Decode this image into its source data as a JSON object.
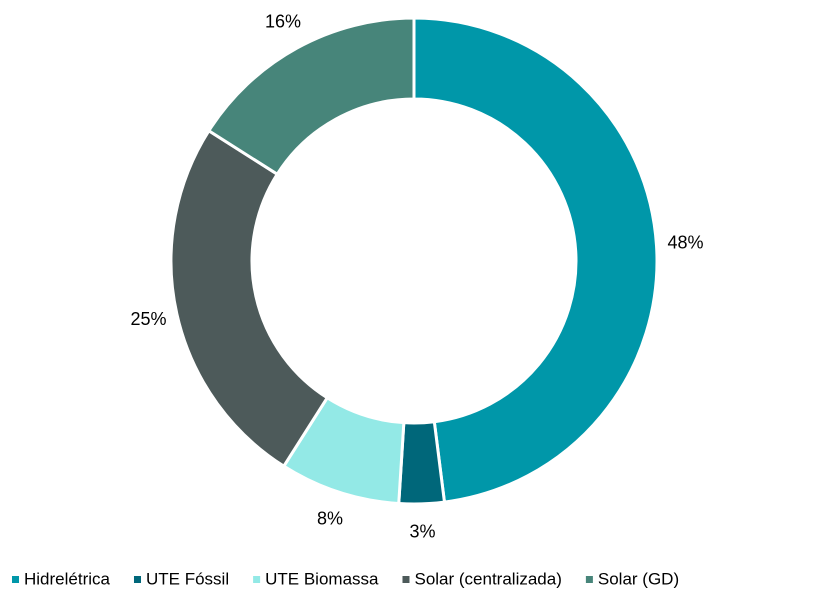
{
  "chart_data": {
    "type": "donut",
    "categories": [
      "Hidrelétrica",
      "UTE Fóssil",
      "UTE Biomassa",
      "Solar (centralizada)",
      "Solar (GD)"
    ],
    "values": [
      48,
      3,
      8,
      25,
      16
    ],
    "value_labels": [
      "48%",
      "3%",
      "8%",
      "25%",
      "16%"
    ],
    "colors": [
      "#0097a9",
      "#00677a",
      "#93e9e6",
      "#4d5a5a",
      "#47857a"
    ],
    "legend": "bottom"
  }
}
